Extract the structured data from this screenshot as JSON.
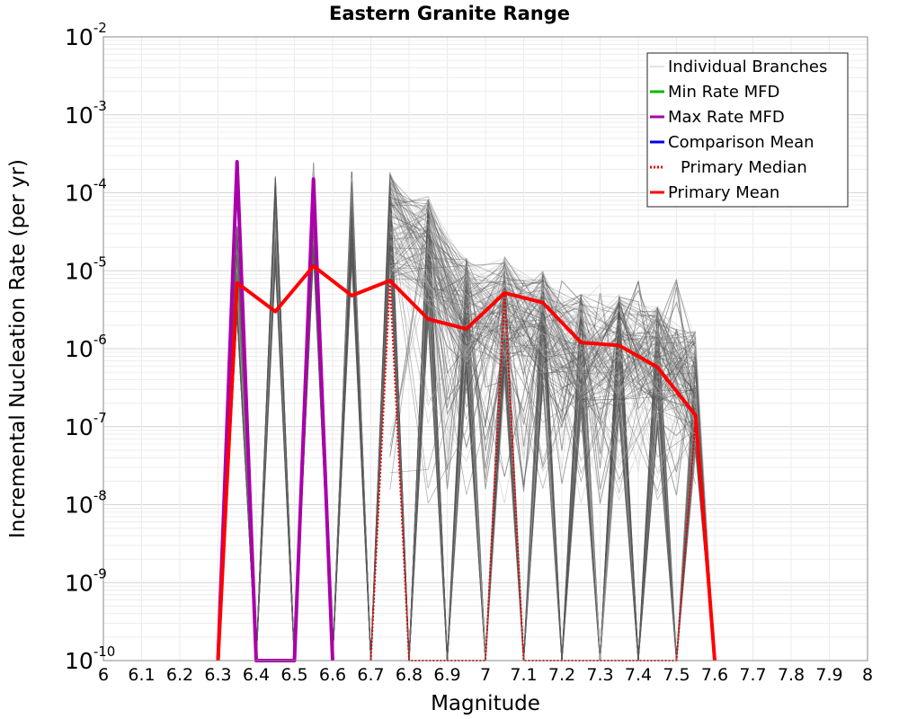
{
  "chart_data": {
    "type": "line",
    "title": "Eastern Granite Range",
    "xlabel": "Magnitude",
    "ylabel": "Incremental Nucleation Rate (per yr)",
    "xlim": [
      6,
      8
    ],
    "ylim": [
      1e-10,
      0.01
    ],
    "y_scale": "log",
    "grid": true,
    "legend_position": "top-right",
    "x_ticks": [
      "6",
      "6.1",
      "6.2",
      "6.3",
      "6.4",
      "6.5",
      "6.6",
      "6.7",
      "6.8",
      "6.9",
      "7",
      "7.1",
      "7.2",
      "7.3",
      "7.4",
      "7.5",
      "7.6",
      "7.7",
      "7.8",
      "7.9",
      "8"
    ],
    "y_ticks": [
      {
        "base": "10",
        "exp": "-10"
      },
      {
        "base": "10",
        "exp": "-9"
      },
      {
        "base": "10",
        "exp": "-8"
      },
      {
        "base": "10",
        "exp": "-7"
      },
      {
        "base": "10",
        "exp": "-6"
      },
      {
        "base": "10",
        "exp": "-5"
      },
      {
        "base": "10",
        "exp": "-4"
      },
      {
        "base": "10",
        "exp": "-3"
      },
      {
        "base": "10",
        "exp": "-2"
      }
    ],
    "series": [
      {
        "name": "Individual Branches",
        "color": "#555555",
        "style": "solid",
        "note_values": "many overlapping thin gray branch lines; representative peak envelope shown",
        "x": [
          6.35,
          6.45,
          6.55,
          6.65,
          6.75,
          6.85,
          6.95,
          7.05,
          7.15,
          7.25,
          7.35,
          7.45,
          7.55
        ],
        "y": [
          4e-05,
          0.00017,
          0.00025,
          0.00019,
          0.00019,
          9e-05,
          1.5e-05,
          1.5e-05,
          1e-05,
          5e-06,
          5e-06,
          3.5e-06,
          1.7e-06
        ]
      },
      {
        "name": "Min Rate MFD",
        "color": "#00bb00",
        "style": "solid",
        "x": [],
        "y": []
      },
      {
        "name": "Max Rate MFD",
        "color": "#aa00aa",
        "style": "solid",
        "x": [
          6.3,
          6.35,
          6.4,
          6.5,
          6.55,
          6.6
        ],
        "y": [
          1e-10,
          0.00025,
          1e-10,
          1e-10,
          0.00015,
          1e-10
        ]
      },
      {
        "name": "Comparison Mean",
        "color": "#0000ee",
        "style": "solid",
        "x": [],
        "y": []
      },
      {
        "name": "Primary Median",
        "color": "#ee0000",
        "style": "dotted",
        "x": [
          6.7,
          6.75,
          6.8,
          7.0,
          7.05,
          7.1,
          7.5,
          7.55,
          7.6
        ],
        "y": [
          1e-10,
          7e-06,
          1e-10,
          1e-10,
          5e-06,
          1e-10,
          1e-10,
          1.3e-07,
          1e-10
        ]
      },
      {
        "name": "Primary Mean",
        "color": "#ff0000",
        "style": "solid",
        "x": [
          6.3,
          6.35,
          6.45,
          6.55,
          6.65,
          6.75,
          6.85,
          6.95,
          7.05,
          7.15,
          7.25,
          7.35,
          7.45,
          7.55,
          7.6
        ],
        "y": [
          1e-10,
          7e-06,
          3e-06,
          1.15e-05,
          4.8e-06,
          7.5e-06,
          2.4e-06,
          1.8e-06,
          5.2e-06,
          3.9e-06,
          1.2e-06,
          1.1e-06,
          5.8e-07,
          1.4e-07,
          1e-10
        ]
      }
    ]
  }
}
